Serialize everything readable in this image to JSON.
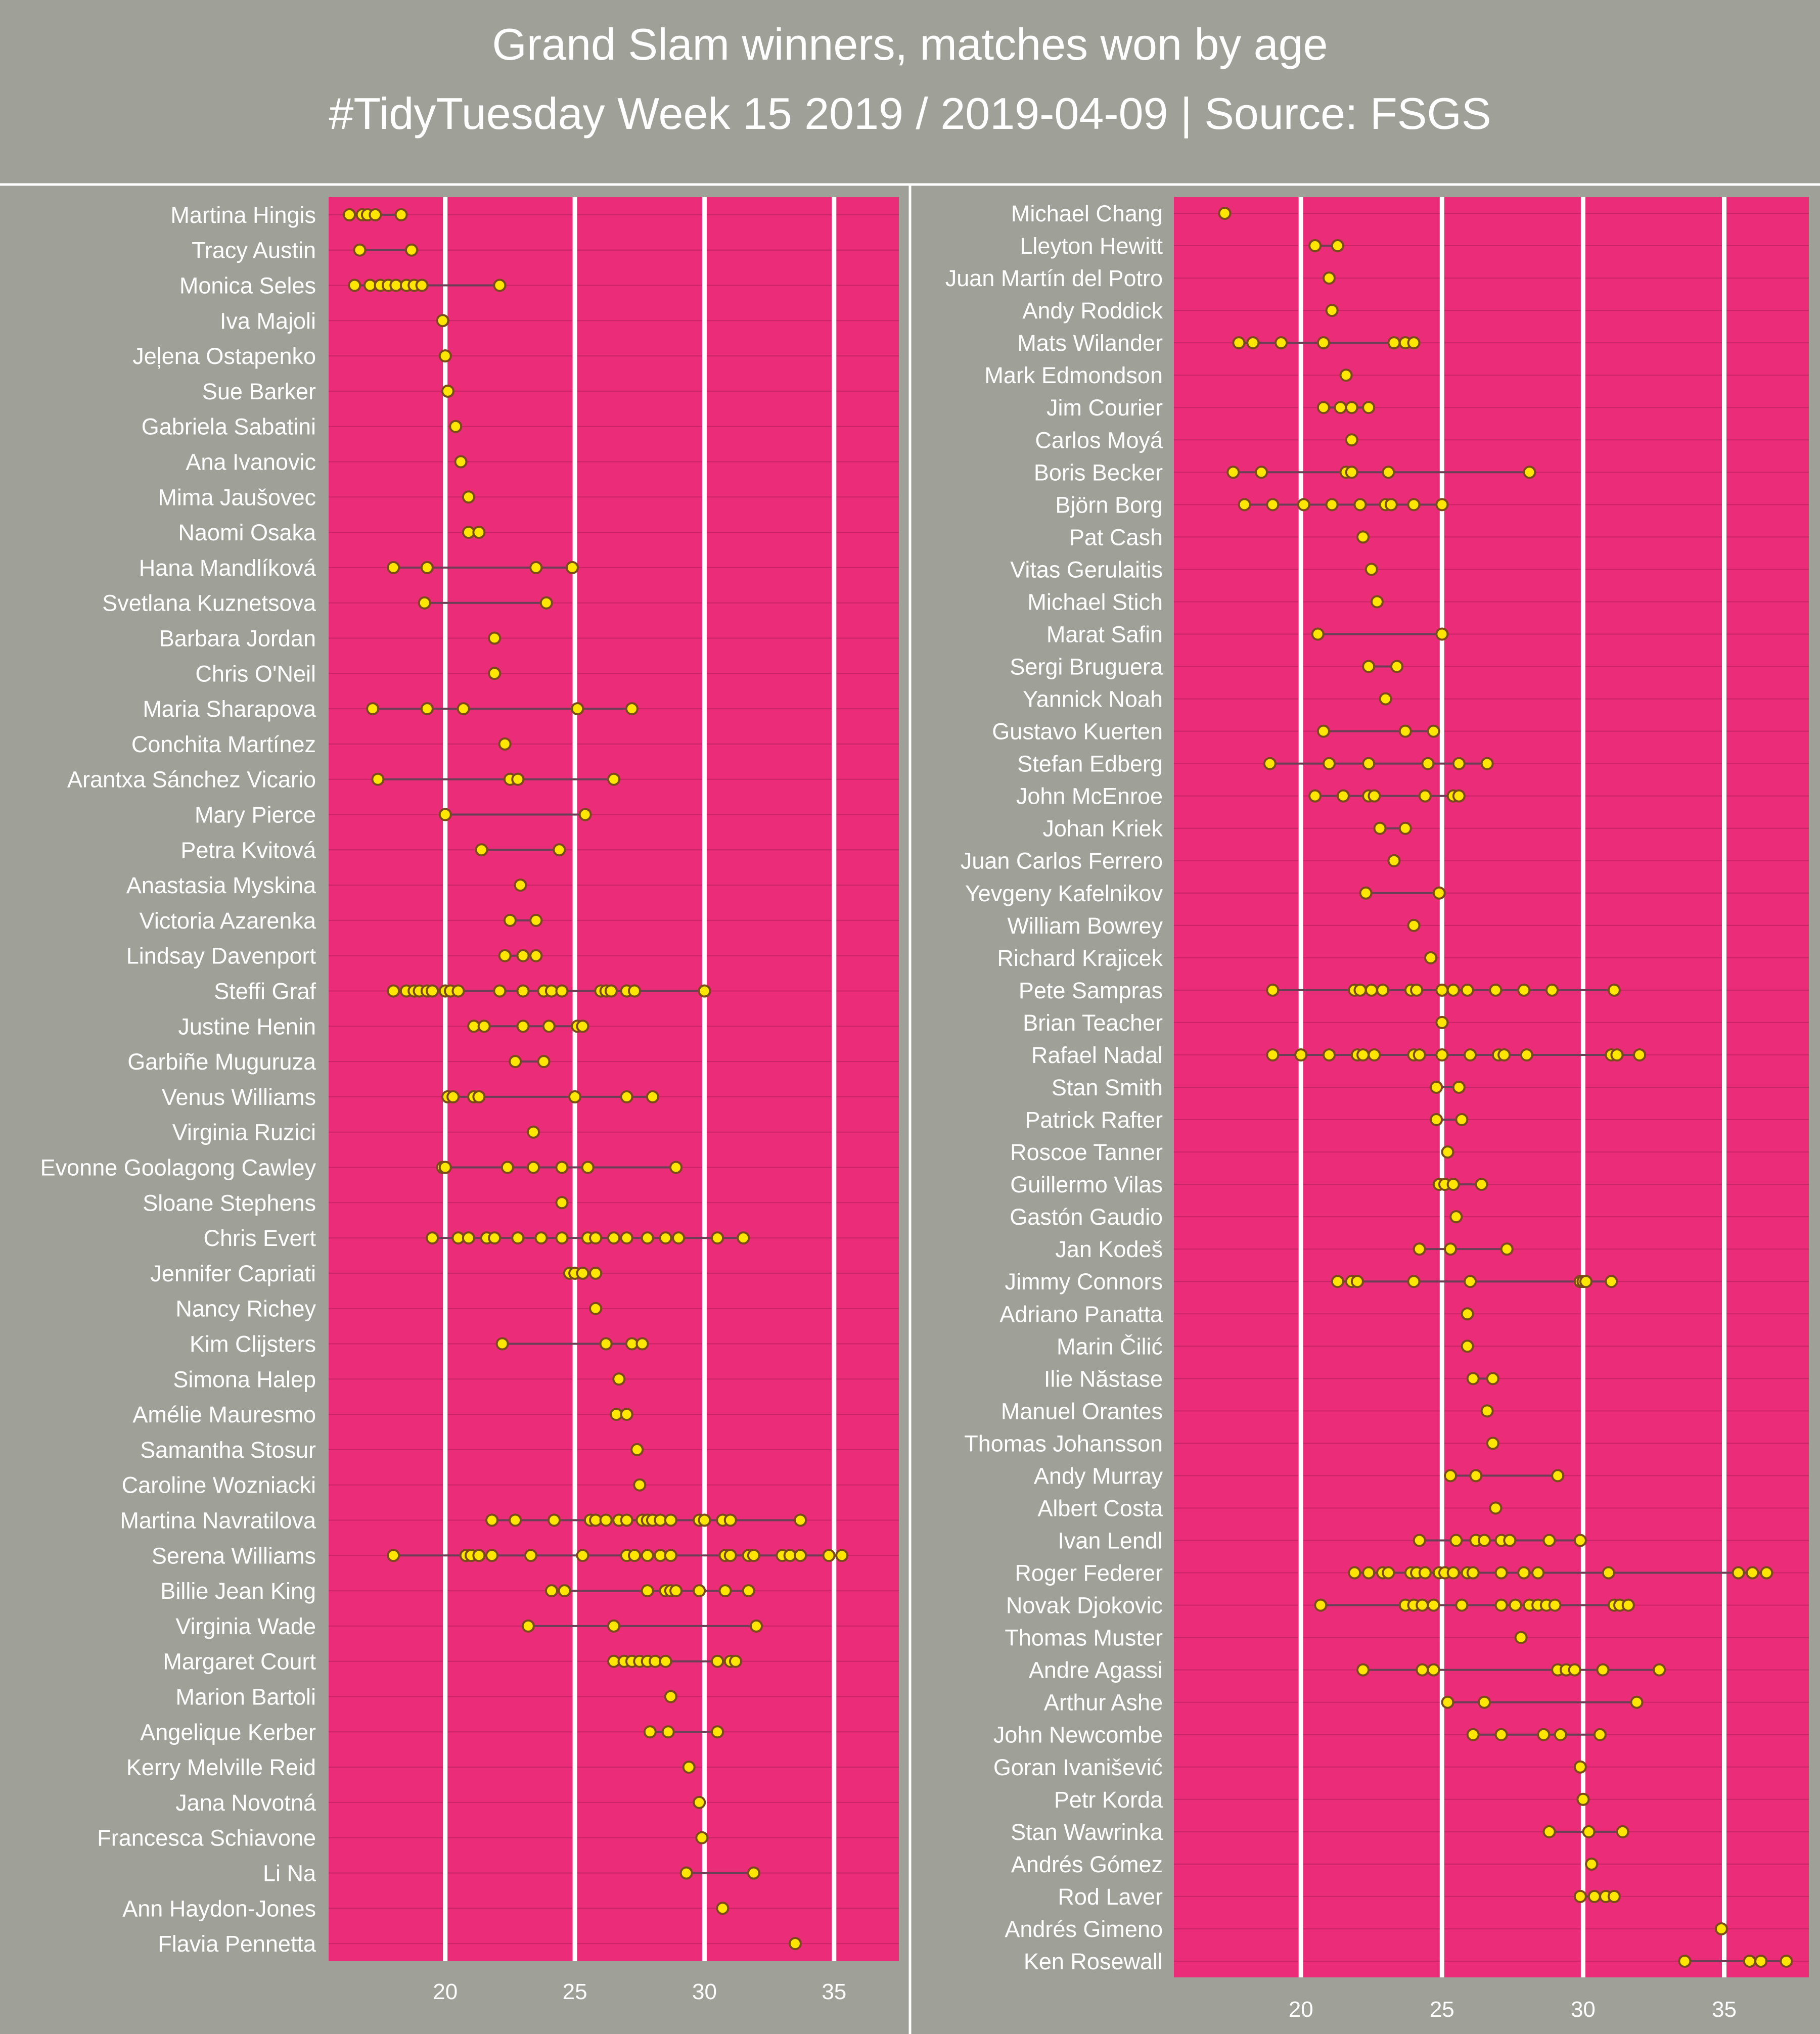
{
  "title_line1": "Grand Slam winners, matches won by age",
  "title_line2": "#TidyTuesday Week 15 2019 / 2019-04-09 | Source: FSGS",
  "colors": {
    "background": "#9fa199",
    "panel": "#ea2c79",
    "point_fill": "#ffe600",
    "point_stroke": "#7a4a1a",
    "line": "#6b3f55",
    "gridline": "#ffffff",
    "text": "#ffffff"
  },
  "chart_data": [
    {
      "type": "scatter",
      "xlim": [
        15.5,
        37.5
      ],
      "xticks": [
        20,
        25,
        30,
        35
      ],
      "grid": "vertical major gridlines",
      "players": [
        {
          "name": "Martina Hingis",
          "ages": [
            16.3,
            16.8,
            17.0,
            17.3,
            18.3
          ]
        },
        {
          "name": "Tracy Austin",
          "ages": [
            16.7,
            18.7
          ]
        },
        {
          "name": "Monica Seles",
          "ages": [
            16.5,
            17.1,
            17.5,
            17.8,
            18.1,
            18.5,
            18.8,
            19.1,
            22.1
          ]
        },
        {
          "name": "Iva Majoli",
          "ages": [
            19.9
          ]
        },
        {
          "name": "Jeļena Ostapenko",
          "ages": [
            20.0
          ]
        },
        {
          "name": "Sue Barker",
          "ages": [
            20.1
          ]
        },
        {
          "name": "Gabriela Sabatini",
          "ages": [
            20.4
          ]
        },
        {
          "name": "Ana Ivanovic",
          "ages": [
            20.6
          ]
        },
        {
          "name": "Mima Jaušovec",
          "ages": [
            20.9
          ]
        },
        {
          "name": "Naomi Osaka",
          "ages": [
            20.9,
            21.3
          ]
        },
        {
          "name": "Hana Mandlíková",
          "ages": [
            18.0,
            19.3,
            23.5,
            24.9
          ]
        },
        {
          "name": "Svetlana Kuznetsova",
          "ages": [
            19.2,
            23.9
          ]
        },
        {
          "name": "Barbara Jordan",
          "ages": [
            21.9
          ]
        },
        {
          "name": "Chris O'Neil",
          "ages": [
            21.9
          ]
        },
        {
          "name": "Maria Sharapova",
          "ages": [
            17.2,
            19.3,
            20.7,
            25.1,
            27.2
          ]
        },
        {
          "name": "Conchita Martínez",
          "ages": [
            22.3
          ]
        },
        {
          "name": "Arantxa Sánchez Vicario",
          "ages": [
            17.4,
            22.5,
            22.8,
            26.5
          ]
        },
        {
          "name": "Mary Pierce",
          "ages": [
            20.0,
            25.4
          ]
        },
        {
          "name": "Petra Kvitová",
          "ages": [
            21.4,
            24.4
          ]
        },
        {
          "name": "Anastasia Myskina",
          "ages": [
            22.9
          ]
        },
        {
          "name": "Victoria Azarenka",
          "ages": [
            22.5,
            23.5
          ]
        },
        {
          "name": "Lindsay Davenport",
          "ages": [
            22.3,
            23.0,
            23.5
          ]
        },
        {
          "name": "Steffi Graf",
          "ages": [
            18.0,
            18.5,
            18.8,
            19.0,
            19.3,
            19.5,
            20.0,
            20.2,
            20.5,
            22.1,
            23.0,
            23.8,
            24.1,
            24.5,
            26.0,
            26.2,
            26.4,
            27.0,
            27.3,
            30.0
          ]
        },
        {
          "name": "Justine Henin",
          "ages": [
            21.1,
            21.5,
            23.0,
            24.0,
            25.1,
            25.3
          ]
        },
        {
          "name": "Garbiñe Muguruza",
          "ages": [
            22.7,
            23.8
          ]
        },
        {
          "name": "Venus Williams",
          "ages": [
            20.1,
            20.3,
            21.1,
            21.3,
            25.0,
            27.0,
            28.0
          ]
        },
        {
          "name": "Virginia Ruzici",
          "ages": [
            23.4
          ]
        },
        {
          "name": "Evonne Goolagong Cawley",
          "ages": [
            19.9,
            20.0,
            22.4,
            23.4,
            24.5,
            25.5,
            28.9
          ]
        },
        {
          "name": "Sloane Stephens",
          "ages": [
            24.5
          ]
        },
        {
          "name": "Chris Evert",
          "ages": [
            19.5,
            20.5,
            20.9,
            21.6,
            21.9,
            22.8,
            23.7,
            24.5,
            25.5,
            25.8,
            26.5,
            27.0,
            27.8,
            28.5,
            29.0,
            30.5,
            31.5
          ]
        },
        {
          "name": "Jennifer Capriati",
          "ages": [
            24.8,
            25.0,
            25.3,
            25.8
          ]
        },
        {
          "name": "Nancy Richey",
          "ages": [
            25.8
          ]
        },
        {
          "name": "Kim Clijsters",
          "ages": [
            22.2,
            26.2,
            27.2,
            27.6
          ]
        },
        {
          "name": "Simona Halep",
          "ages": [
            26.7
          ]
        },
        {
          "name": "Amélie Mauresmo",
          "ages": [
            26.6,
            27.0
          ]
        },
        {
          "name": "Samantha Stosur",
          "ages": [
            27.4
          ]
        },
        {
          "name": "Caroline Wozniacki",
          "ages": [
            27.5
          ]
        },
        {
          "name": "Martina Navratilova",
          "ages": [
            21.8,
            22.7,
            24.2,
            25.6,
            25.8,
            26.2,
            26.7,
            27.0,
            27.6,
            27.8,
            28.0,
            28.3,
            28.7,
            29.8,
            30.0,
            30.7,
            31.0,
            33.7
          ]
        },
        {
          "name": "Serena Williams",
          "ages": [
            18.0,
            20.8,
            21.0,
            21.3,
            21.8,
            23.3,
            25.3,
            27.0,
            27.3,
            27.8,
            28.3,
            28.7,
            30.8,
            31.0,
            31.7,
            31.9,
            33.0,
            33.3,
            33.7,
            34.8,
            35.3
          ]
        },
        {
          "name": "Billie Jean King",
          "ages": [
            24.1,
            24.6,
            27.8,
            28.5,
            28.7,
            28.9,
            29.8,
            30.8,
            31.7
          ]
        },
        {
          "name": "Virginia Wade",
          "ages": [
            23.2,
            26.5,
            32.0
          ]
        },
        {
          "name": "Margaret Court",
          "ages": [
            26.5,
            26.9,
            27.2,
            27.5,
            27.8,
            28.1,
            28.5,
            30.5,
            31.0,
            31.2
          ]
        },
        {
          "name": "Marion Bartoli",
          "ages": [
            28.7
          ]
        },
        {
          "name": "Angelique Kerber",
          "ages": [
            27.9,
            28.6,
            30.5
          ]
        },
        {
          "name": "Kerry Melville Reid",
          "ages": [
            29.4
          ]
        },
        {
          "name": "Jana Novotná",
          "ages": [
            29.8
          ]
        },
        {
          "name": "Francesca Schiavone",
          "ages": [
            29.9
          ]
        },
        {
          "name": "Li Na",
          "ages": [
            29.3,
            31.9
          ]
        },
        {
          "name": "Ann Haydon-Jones",
          "ages": [
            30.7
          ]
        },
        {
          "name": "Flavia Pennetta",
          "ages": [
            33.5
          ]
        }
      ]
    },
    {
      "type": "scatter",
      "xlim": [
        15.5,
        38.0
      ],
      "xticks": [
        20,
        25,
        30,
        35
      ],
      "grid": "vertical major gridlines",
      "players": [
        {
          "name": "Michael Chang",
          "ages": [
            17.3
          ]
        },
        {
          "name": "Lleyton Hewitt",
          "ages": [
            20.5,
            21.3
          ]
        },
        {
          "name": "Juan Martín del Potro",
          "ages": [
            21.0
          ]
        },
        {
          "name": "Andy Roddick",
          "ages": [
            21.1
          ]
        },
        {
          "name": "Mats Wilander",
          "ages": [
            17.8,
            18.3,
            19.3,
            20.8,
            23.3,
            23.7,
            24.0
          ]
        },
        {
          "name": "Mark Edmondson",
          "ages": [
            21.6
          ]
        },
        {
          "name": "Jim Courier",
          "ages": [
            20.8,
            21.4,
            21.8,
            22.4
          ]
        },
        {
          "name": "Carlos Moyá",
          "ages": [
            21.8
          ]
        },
        {
          "name": "Boris Becker",
          "ages": [
            17.6,
            18.6,
            21.6,
            21.8,
            23.1,
            28.1
          ]
        },
        {
          "name": "Björn Borg",
          "ages": [
            18.0,
            19.0,
            20.1,
            21.1,
            22.1,
            23.0,
            23.2,
            24.0,
            25.0
          ]
        },
        {
          "name": "Pat Cash",
          "ages": [
            22.2
          ]
        },
        {
          "name": "Vitas Gerulaitis",
          "ages": [
            22.5
          ]
        },
        {
          "name": "Michael Stich",
          "ages": [
            22.7
          ]
        },
        {
          "name": "Marat Safin",
          "ages": [
            20.6,
            25.0
          ]
        },
        {
          "name": "Sergi Bruguera",
          "ages": [
            22.4,
            23.4
          ]
        },
        {
          "name": "Yannick Noah",
          "ages": [
            23.0
          ]
        },
        {
          "name": "Gustavo Kuerten",
          "ages": [
            20.8,
            23.7,
            24.7
          ]
        },
        {
          "name": "Stefan Edberg",
          "ages": [
            18.9,
            21.0,
            22.4,
            24.5,
            25.6,
            26.6
          ]
        },
        {
          "name": "John McEnroe",
          "ages": [
            20.5,
            21.5,
            22.4,
            22.6,
            24.4,
            25.4,
            25.6
          ]
        },
        {
          "name": "Johan Kriek",
          "ages": [
            22.8,
            23.7
          ]
        },
        {
          "name": "Juan Carlos Ferrero",
          "ages": [
            23.3
          ]
        },
        {
          "name": "Yevgeny Kafelnikov",
          "ages": [
            22.3,
            24.9
          ]
        },
        {
          "name": "William Bowrey",
          "ages": [
            24.0
          ]
        },
        {
          "name": "Richard Krajicek",
          "ages": [
            24.6
          ]
        },
        {
          "name": "Pete Sampras",
          "ages": [
            19.0,
            21.9,
            22.1,
            22.5,
            22.9,
            23.9,
            24.1,
            25.0,
            25.4,
            25.9,
            26.9,
            27.9,
            28.9,
            31.1
          ]
        },
        {
          "name": "Brian Teacher",
          "ages": [
            25.0
          ]
        },
        {
          "name": "Rafael Nadal",
          "ages": [
            19.0,
            20.0,
            21.0,
            22.0,
            22.2,
            22.6,
            24.0,
            24.2,
            25.0,
            26.0,
            27.0,
            27.2,
            28.0,
            31.0,
            31.2,
            32.0
          ]
        },
        {
          "name": "Stan Smith",
          "ages": [
            24.8,
            25.6
          ]
        },
        {
          "name": "Patrick Rafter",
          "ages": [
            24.8,
            25.7
          ]
        },
        {
          "name": "Roscoe Tanner",
          "ages": [
            25.2
          ]
        },
        {
          "name": "Guillermo Vilas",
          "ages": [
            24.9,
            25.1,
            25.4,
            26.4
          ]
        },
        {
          "name": "Gastón Gaudio",
          "ages": [
            25.5
          ]
        },
        {
          "name": "Jan Kodeš",
          "ages": [
            24.2,
            25.3,
            27.3
          ]
        },
        {
          "name": "Jimmy Connors",
          "ages": [
            21.3,
            21.8,
            22.0,
            24.0,
            26.0,
            29.9,
            30.0,
            30.1,
            31.0
          ]
        },
        {
          "name": "Adriano Panatta",
          "ages": [
            25.9
          ]
        },
        {
          "name": "Marin Čilić",
          "ages": [
            25.9
          ]
        },
        {
          "name": "Ilie Năstase",
          "ages": [
            26.1,
            26.8
          ]
        },
        {
          "name": "Manuel Orantes",
          "ages": [
            26.6
          ]
        },
        {
          "name": "Thomas Johansson",
          "ages": [
            26.8
          ]
        },
        {
          "name": "Andy Murray",
          "ages": [
            25.3,
            26.2,
            29.1
          ]
        },
        {
          "name": "Albert Costa",
          "ages": [
            26.9
          ]
        },
        {
          "name": "Ivan Lendl",
          "ages": [
            24.2,
            25.5,
            26.2,
            26.5,
            27.1,
            27.4,
            28.8,
            29.9
          ]
        },
        {
          "name": "Roger Federer",
          "ages": [
            21.9,
            22.4,
            22.9,
            23.1,
            23.9,
            24.1,
            24.4,
            24.9,
            25.1,
            25.4,
            25.9,
            26.1,
            27.1,
            27.9,
            28.4,
            30.9,
            35.5,
            36.0,
            36.5
          ]
        },
        {
          "name": "Novak Djokovic",
          "ages": [
            20.7,
            23.7,
            24.0,
            24.3,
            24.7,
            25.7,
            27.1,
            27.6,
            28.1,
            28.4,
            28.7,
            29.0,
            31.1,
            31.3,
            31.6
          ]
        },
        {
          "name": "Thomas Muster",
          "ages": [
            27.8
          ]
        },
        {
          "name": "Andre Agassi",
          "ages": [
            22.2,
            24.3,
            24.7,
            29.1,
            29.4,
            29.7,
            30.7,
            32.7
          ]
        },
        {
          "name": "Arthur Ashe",
          "ages": [
            25.2,
            26.5,
            31.9
          ]
        },
        {
          "name": "John Newcombe",
          "ages": [
            26.1,
            27.1,
            28.6,
            29.2,
            30.6
          ]
        },
        {
          "name": "Goran Ivanišević",
          "ages": [
            29.9
          ]
        },
        {
          "name": "Petr Korda",
          "ages": [
            30.0
          ]
        },
        {
          "name": "Stan Wawrinka",
          "ages": [
            28.8,
            30.2,
            31.4
          ]
        },
        {
          "name": "Andrés Gómez",
          "ages": [
            30.3
          ]
        },
        {
          "name": "Rod Laver",
          "ages": [
            29.9,
            30.4,
            30.8,
            31.1
          ]
        },
        {
          "name": "Andrés Gimeno",
          "ages": [
            34.9
          ]
        },
        {
          "name": "Ken Rosewall",
          "ages": [
            33.6,
            35.9,
            36.3,
            37.2
          ]
        }
      ]
    }
  ]
}
